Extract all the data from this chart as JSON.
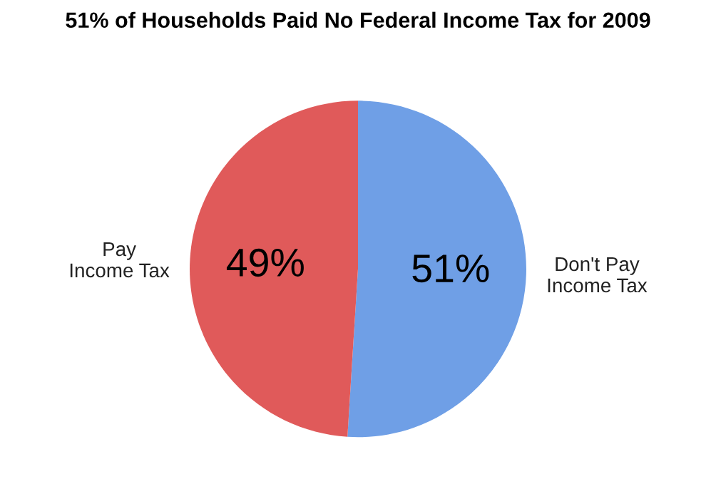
{
  "chart_data": {
    "type": "pie",
    "title": "51% of Households Paid No Federal Income Tax for 2009",
    "categories": [
      "Don't Pay\nIncome Tax",
      "Pay\nIncome Tax"
    ],
    "values": [
      51,
      49
    ],
    "value_labels": [
      "51%",
      "49%"
    ],
    "colors": [
      "#6f9fe6",
      "#e05a5a"
    ],
    "legend": false
  }
}
